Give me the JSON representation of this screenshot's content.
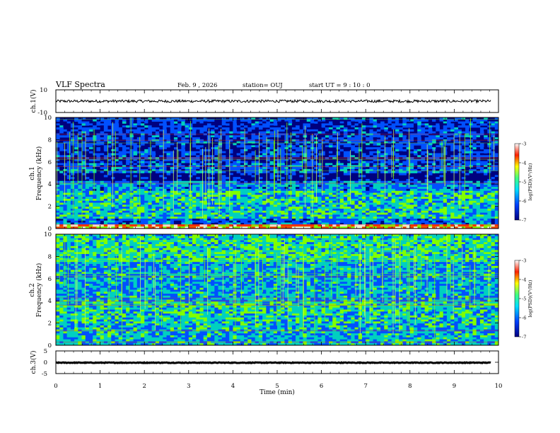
{
  "header": {
    "title": "VLF Spectra",
    "date": "Feb. 9 , 2026",
    "station": "station= OUJ",
    "start": "start UT =  9 : 10 : 0"
  },
  "colors": {
    "low": "#00007f",
    "mid_low": "#0050ff",
    "mid": "#00d0c0",
    "mid_high": "#80ff00",
    "high": "#ff3000",
    "peak": "#ffffff",
    "trace": "#000000"
  },
  "chart_data": [
    {
      "type": "line",
      "name": "ch1-waveform",
      "ylabel": "ch.1(V)",
      "ylim": [
        -10,
        10
      ],
      "yticks": [
        "10",
        "-10"
      ],
      "x_range_min": [
        0,
        9.83
      ],
      "y_mean": 0,
      "y_noise": 1.2
    },
    {
      "type": "heatmap",
      "name": "ch1-spectrogram",
      "ylabel_line1": "ch.1",
      "ylabel_line2": "Frequency (kHz)",
      "ylim": [
        0,
        10
      ],
      "yticks": [
        "0",
        "2",
        "4",
        "6",
        "8",
        "10"
      ],
      "colorbar": {
        "label": "log(PSD)(V²/Hz)",
        "range": [
          -7,
          -3
        ],
        "ticks": [
          "-3",
          "-4",
          "-5",
          "-6",
          "-7"
        ]
      }
    },
    {
      "type": "heatmap",
      "name": "ch2-spectrogram",
      "ylabel_line1": "ch.2",
      "ylabel_line2": "Frequency (kHz)",
      "ylim": [
        0,
        10
      ],
      "yticks": [
        "0",
        "2",
        "4",
        "6",
        "8",
        "10"
      ],
      "colorbar": {
        "label": "log(PSD)(V²/Hz)",
        "range": [
          -7,
          -3
        ],
        "ticks": [
          "-3",
          "-4",
          "-5",
          "-6",
          "-7"
        ]
      }
    },
    {
      "type": "line",
      "name": "ch3-waveform",
      "ylabel": "ch.3(V)",
      "ylim": [
        -5,
        5
      ],
      "yticks": [
        "5",
        "0",
        "-5"
      ],
      "x_range_min": [
        0,
        9.83
      ],
      "y_mean": -0.2,
      "y_noise": 0.15
    }
  ],
  "xaxis": {
    "label": "Time (min)",
    "ticks": [
      "0",
      "1",
      "2",
      "3",
      "4",
      "5",
      "6",
      "7",
      "8",
      "9",
      "10"
    ],
    "range": [
      0,
      10
    ]
  }
}
